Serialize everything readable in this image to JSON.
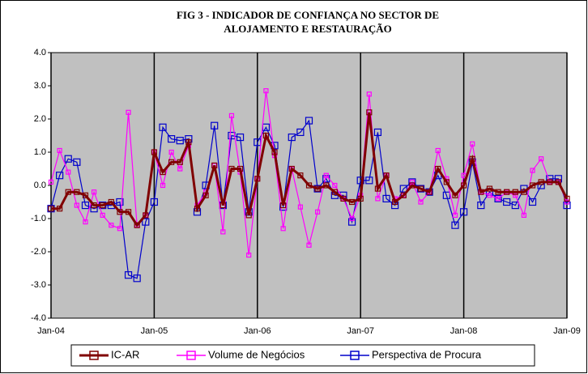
{
  "chart_data": {
    "type": "line",
    "title": [
      "FIG 3 - INDICADOR DE CONFIANÇA NO SECTOR DE",
      "ALOJAMENTO E RESTAURAÇÃO"
    ],
    "categories": [
      "Jan-04",
      null,
      null,
      null,
      null,
      null,
      null,
      null,
      null,
      null,
      null,
      null,
      "Jan-05",
      null,
      null,
      null,
      null,
      null,
      null,
      null,
      null,
      null,
      null,
      null,
      "Jan-06",
      null,
      null,
      null,
      null,
      null,
      null,
      null,
      null,
      null,
      null,
      null,
      "Jan-07",
      null,
      null,
      null,
      null,
      null,
      null,
      null,
      null,
      null,
      null,
      null,
      "Jan-08",
      null,
      null,
      null,
      null,
      null,
      null,
      null,
      null,
      null,
      null,
      null,
      "Jan-09"
    ],
    "ylim": [
      -4,
      4
    ],
    "yticks": [
      {
        "value": -4,
        "label": "-4.0"
      },
      {
        "value": -3,
        "label": "-3.0"
      },
      {
        "value": -2,
        "label": "-2.0"
      },
      {
        "value": -1,
        "label": "-1.0"
      },
      {
        "value": 0,
        "label": "0.0"
      },
      {
        "value": 1,
        "label": "1.0"
      },
      {
        "value": 2,
        "label": "2.0"
      },
      {
        "value": 3,
        "label": "3.0"
      },
      {
        "value": 4,
        "label": "4.0"
      }
    ],
    "plot_background": "#c0c0c0",
    "series": [
      {
        "name": "IC-AR",
        "color": "#800000",
        "values": [
          -0.7,
          -0.7,
          -0.2,
          -0.2,
          -0.3,
          -0.6,
          -0.6,
          -0.5,
          -0.8,
          -0.8,
          -1.2,
          -0.9,
          1.0,
          0.4,
          0.7,
          0.7,
          1.3,
          -0.7,
          -0.3,
          0.6,
          -0.6,
          0.5,
          0.5,
          -0.9,
          0.2,
          1.5,
          1.0,
          -0.6,
          0.5,
          0.3,
          0.0,
          -0.1,
          0.0,
          -0.2,
          -0.4,
          -0.5,
          -0.4,
          2.2,
          -0.1,
          0.3,
          -0.5,
          -0.3,
          0.0,
          -0.1,
          -0.2,
          0.5,
          0.1,
          -0.3,
          0.0,
          0.8,
          -0.2,
          -0.1,
          -0.2,
          -0.2,
          -0.2,
          -0.2,
          0.0,
          0.1,
          0.1,
          0.1,
          -0.4
        ]
      },
      {
        "name": "Volume de Negócios",
        "color": "#ff00ff",
        "values": [
          0.1,
          1.05,
          0.4,
          -0.6,
          -1.1,
          -0.2,
          -0.9,
          -1.2,
          -1.3,
          2.2,
          -1.2,
          -0.9,
          1.0,
          0.0,
          1.0,
          0.5,
          1.2,
          -0.6,
          -0.2,
          0.6,
          -1.4,
          2.1,
          0.4,
          -2.1,
          0.2,
          2.85,
          0.9,
          -1.3,
          0.5,
          -0.65,
          -1.8,
          -0.8,
          0.3,
          0.0,
          -0.4,
          -1.0,
          -0.3,
          2.75,
          -0.4,
          0.3,
          -0.4,
          -0.3,
          0.1,
          -0.5,
          -0.2,
          1.05,
          0.2,
          -0.9,
          0.3,
          1.25,
          -0.2,
          -0.3,
          -0.4,
          -0.2,
          -0.3,
          -0.9,
          0.45,
          0.8,
          0.1,
          0.1,
          -0.5
        ]
      },
      {
        "name": "Perspectiva de Procura",
        "color": "#0000cc",
        "values": [
          -0.7,
          0.3,
          0.8,
          0.7,
          -0.6,
          -0.7,
          -0.6,
          -0.6,
          -0.5,
          -2.7,
          -2.8,
          -1.1,
          -0.5,
          1.75,
          1.4,
          1.35,
          1.4,
          -0.8,
          0.0,
          1.8,
          -0.6,
          1.5,
          1.45,
          -0.8,
          1.3,
          1.75,
          1.2,
          -0.65,
          1.45,
          1.6,
          1.95,
          -0.1,
          0.2,
          -0.3,
          -0.3,
          -1.1,
          0.15,
          0.15,
          1.6,
          -0.4,
          -0.6,
          -0.1,
          0.1,
          -0.1,
          -0.2,
          0.3,
          -0.3,
          -1.2,
          -0.8,
          0.7,
          -0.6,
          -0.2,
          -0.4,
          -0.5,
          -0.6,
          -0.1,
          -0.5,
          0.0,
          0.2,
          0.2,
          -0.6
        ]
      }
    ]
  }
}
